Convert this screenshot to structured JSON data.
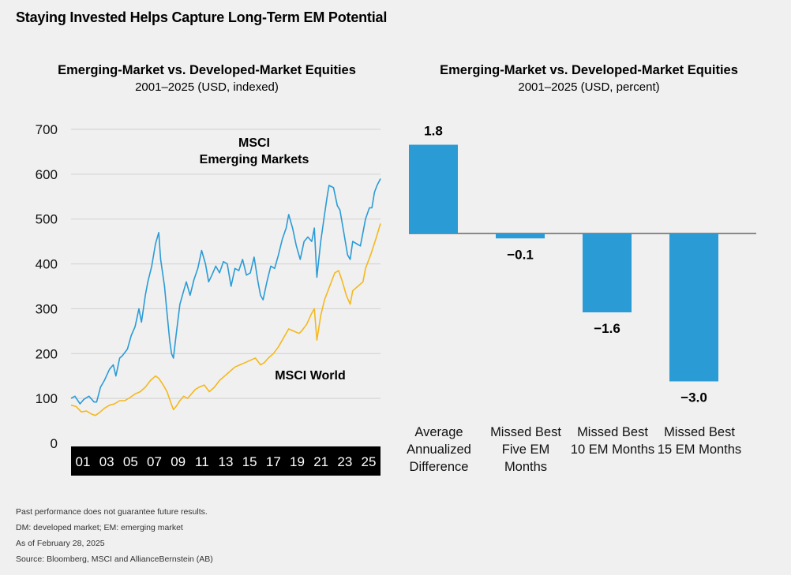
{
  "title": "Staying Invested Helps Capture Long-Term EM Potential",
  "left_chart": {
    "title": "Emerging-Market vs. Developed-Market Equities",
    "subtitle": "2001–2025 (USD, indexed)"
  },
  "right_chart": {
    "title": "Emerging-Market vs. Developed-Market Equities",
    "subtitle": "2001–2025 (USD, percent)"
  },
  "chart_data": [
    {
      "type": "line",
      "title": "Emerging-Market vs. Developed-Market Equities",
      "subtitle": "2001–2025 (USD, indexed)",
      "ylim": [
        0,
        700
      ],
      "yticks": [
        "700",
        "600",
        "500",
        "400",
        "300",
        "200",
        "100",
        "0"
      ],
      "xticks": [
        "01",
        "03",
        "05",
        "07",
        "09",
        "11",
        "13",
        "15",
        "17",
        "19",
        "21",
        "23",
        "25"
      ],
      "xlim": [
        2001.0,
        2025.17
      ],
      "grid": true,
      "colors": {
        "em": "#2b9bd6",
        "world": "#f5b81c"
      },
      "series": [
        {
          "name": "MSCI\nEmerging Markets",
          "label_lines": [
            "MSCI",
            "Emerging Markets"
          ],
          "x": [
            2001.0,
            2001.3,
            2001.7,
            2002.0,
            2002.4,
            2002.8,
            2003.0,
            2003.3,
            2003.6,
            2004.0,
            2004.3,
            2004.5,
            2004.8,
            2005.0,
            2005.4,
            2005.7,
            2006.0,
            2006.3,
            2006.5,
            2006.8,
            2007.0,
            2007.3,
            2007.6,
            2007.85,
            2008.0,
            2008.3,
            2008.5,
            2008.7,
            2008.85,
            2009.0,
            2009.2,
            2009.5,
            2009.8,
            2010.0,
            2010.3,
            2010.6,
            2010.9,
            2011.2,
            2011.5,
            2011.75,
            2012.0,
            2012.3,
            2012.6,
            2012.9,
            2013.2,
            2013.5,
            2013.8,
            2014.1,
            2014.4,
            2014.7,
            2015.0,
            2015.3,
            2015.6,
            2015.8,
            2016.0,
            2016.3,
            2016.6,
            2016.9,
            2017.2,
            2017.5,
            2017.8,
            2018.0,
            2018.3,
            2018.6,
            2018.9,
            2019.2,
            2019.5,
            2019.8,
            2020.0,
            2020.2,
            2020.5,
            2020.8,
            2021.0,
            2021.15,
            2021.5,
            2021.8,
            2022.0,
            2022.3,
            2022.6,
            2022.8,
            2023.0,
            2023.3,
            2023.6,
            2023.8,
            2024.0,
            2024.3,
            2024.5,
            2024.7,
            2024.9,
            2025.17
          ],
          "y": [
            100,
            105,
            88,
            98,
            105,
            92,
            92,
            125,
            140,
            165,
            175,
            150,
            190,
            195,
            210,
            240,
            260,
            300,
            270,
            330,
            360,
            395,
            445,
            470,
            410,
            350,
            290,
            230,
            200,
            190,
            240,
            310,
            340,
            360,
            330,
            365,
            390,
            430,
            400,
            360,
            375,
            395,
            380,
            405,
            400,
            350,
            390,
            385,
            410,
            375,
            380,
            415,
            360,
            330,
            320,
            360,
            395,
            390,
            420,
            455,
            480,
            510,
            480,
            440,
            410,
            450,
            460,
            450,
            480,
            370,
            450,
            510,
            550,
            575,
            570,
            530,
            520,
            470,
            420,
            410,
            450,
            445,
            440,
            470,
            500,
            525,
            525,
            560,
            575,
            590
          ],
          "style": "solid"
        },
        {
          "name": "MSCI World",
          "x": [
            2001.0,
            2001.4,
            2001.8,
            2002.2,
            2002.6,
            2002.9,
            2003.2,
            2003.6,
            2004.0,
            2004.4,
            2004.8,
            2005.2,
            2005.6,
            2006.0,
            2006.4,
            2006.8,
            2007.2,
            2007.6,
            2007.85,
            2008.2,
            2008.5,
            2008.8,
            2009.0,
            2009.2,
            2009.5,
            2009.8,
            2010.1,
            2010.4,
            2010.7,
            2011.0,
            2011.4,
            2011.8,
            2012.2,
            2012.6,
            2013.0,
            2013.4,
            2013.8,
            2014.2,
            2014.6,
            2015.0,
            2015.4,
            2015.8,
            2016.1,
            2016.4,
            2016.8,
            2017.2,
            2017.6,
            2018.0,
            2018.4,
            2018.8,
            2019.0,
            2019.4,
            2019.8,
            2020.0,
            2020.2,
            2020.5,
            2020.8,
            2021.2,
            2021.6,
            2021.9,
            2022.2,
            2022.5,
            2022.8,
            2023.0,
            2023.4,
            2023.8,
            2024.0,
            2024.4,
            2024.8,
            2025.17
          ],
          "y": [
            85,
            82,
            70,
            72,
            65,
            62,
            68,
            78,
            85,
            88,
            95,
            95,
            102,
            110,
            115,
            125,
            140,
            150,
            145,
            130,
            115,
            90,
            75,
            82,
            95,
            105,
            100,
            110,
            120,
            125,
            130,
            115,
            125,
            140,
            150,
            160,
            170,
            175,
            180,
            185,
            190,
            175,
            180,
            190,
            200,
            215,
            235,
            255,
            250,
            245,
            250,
            265,
            290,
            300,
            230,
            285,
            320,
            350,
            380,
            385,
            360,
            330,
            310,
            340,
            350,
            360,
            390,
            420,
            455,
            490
          ],
          "style": "solid"
        }
      ]
    },
    {
      "type": "bar",
      "title": "Emerging-Market vs. Developed-Market Equities",
      "subtitle": "2001–2025 (USD, percent)",
      "categories": [
        "Average\nAnnualized\nDifference",
        "Missed Best\nFive EM\nMonths",
        "Missed Best\n10 EM Months",
        "Missed Best\n15 EM Months"
      ],
      "category_lines": [
        [
          "Average",
          "Annualized",
          "Difference"
        ],
        [
          "Missed Best",
          "Five EM",
          "Months"
        ],
        [
          "Missed Best",
          "10 EM Months"
        ],
        [
          "Missed Best",
          "15 EM Months"
        ]
      ],
      "values": [
        1.8,
        -0.1,
        -1.6,
        -3.0
      ],
      "value_labels": [
        "1.8",
        "−0.1",
        "−1.6",
        "−3.0"
      ],
      "color": "#2b9bd6",
      "ylim": [
        -3.0,
        1.8
      ]
    }
  ],
  "footnotes": [
    "Past performance does not guarantee future results.",
    "DM: developed market; EM: emerging market",
    "As of February 28, 2025",
    "Source: Bloomberg, MSCI and AllianceBernstein (AB)"
  ]
}
